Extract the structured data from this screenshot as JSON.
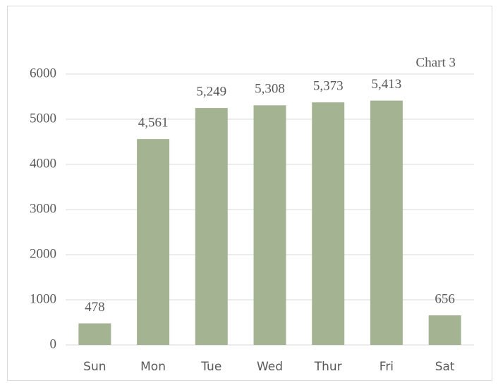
{
  "chart_data": {
    "type": "bar",
    "title": "Chart 3",
    "categories": [
      "Sun",
      "Mon",
      "Tue",
      "Wed",
      "Thur",
      "Fri",
      "Sat"
    ],
    "values": [
      478,
      4561,
      5249,
      5308,
      5373,
      5413,
      656
    ],
    "value_labels": [
      "478",
      "4,561",
      "5,249",
      "5,308",
      "5,373",
      "5,413",
      "656"
    ],
    "color": "#a4b492",
    "ylim": [
      0,
      6000
    ],
    "yticks": [
      0,
      1000,
      2000,
      3000,
      4000,
      5000,
      6000
    ],
    "grid": true
  }
}
